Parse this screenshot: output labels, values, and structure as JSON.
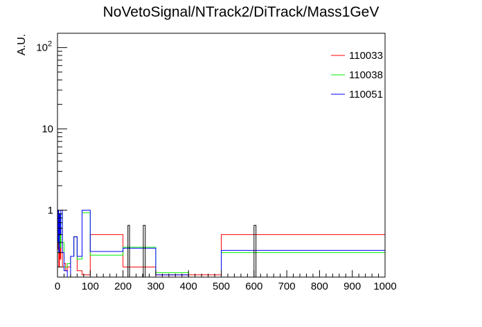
{
  "chart_data": {
    "type": "histogram-step",
    "title": "NoVetoSignal/NTrack2/DiTrack/Mass1GeV",
    "ylabel": "A.U.",
    "xlabel": "",
    "xlim": [
      0,
      1000
    ],
    "ylim": [
      0.15,
      150
    ],
    "yscale": "log",
    "grid": false,
    "legend_position": "top-right",
    "x_ticks": [
      "0",
      "100",
      "200",
      "300",
      "400",
      "500",
      "600",
      "700",
      "800",
      "900",
      "1000"
    ],
    "y_ticks": [
      {
        "value": 1,
        "label": "1"
      },
      {
        "value": 10,
        "label": "10"
      },
      {
        "value": 100,
        "label": "10",
        "exponent": "2"
      }
    ],
    "series": [
      {
        "name": "110033",
        "color": "#ff0000",
        "bins": [
          [
            0,
            2,
            0.33
          ],
          [
            2,
            4,
            1.0
          ],
          [
            4,
            6,
            0.2
          ],
          [
            6,
            8,
            0.5
          ],
          [
            8,
            10,
            0.25
          ],
          [
            10,
            15,
            0.6
          ],
          [
            15,
            20,
            0.2
          ],
          [
            20,
            25,
            0.22
          ],
          [
            25,
            30,
            0.18
          ],
          [
            30,
            40,
            0.2
          ],
          [
            40,
            50,
            0.27
          ],
          [
            50,
            60,
            0.47
          ],
          [
            60,
            75,
            0.18
          ],
          [
            75,
            100,
            0.16
          ],
          [
            100,
            200,
            0.5
          ],
          [
            200,
            300,
            0.2
          ],
          [
            300,
            400,
            0.16
          ],
          [
            400,
            500,
            0.16
          ],
          [
            500,
            1000,
            0.5
          ]
        ]
      },
      {
        "name": "110038",
        "color": "#00ee00",
        "bins": [
          [
            0,
            2,
            0.5
          ],
          [
            2,
            4,
            0.98
          ],
          [
            4,
            6,
            0.3
          ],
          [
            6,
            8,
            0.7
          ],
          [
            8,
            10,
            0.35
          ],
          [
            10,
            15,
            0.9
          ],
          [
            15,
            20,
            0.4
          ],
          [
            20,
            30,
            0.2
          ],
          [
            30,
            40,
            0.22
          ],
          [
            40,
            50,
            0.27
          ],
          [
            50,
            60,
            0.47
          ],
          [
            60,
            75,
            0.25
          ],
          [
            75,
            100,
            0.93
          ],
          [
            100,
            200,
            0.28
          ],
          [
            200,
            300,
            0.35
          ],
          [
            300,
            400,
            0.17
          ],
          [
            400,
            500,
            0.15
          ],
          [
            500,
            1000,
            0.3
          ]
        ]
      },
      {
        "name": "110051",
        "color": "#0000ff",
        "bins": [
          [
            0,
            2,
            0.4
          ],
          [
            2,
            4,
            1.0
          ],
          [
            4,
            6,
            0.3
          ],
          [
            6,
            8,
            0.9
          ],
          [
            8,
            10,
            0.5
          ],
          [
            10,
            15,
            1.0
          ],
          [
            15,
            20,
            0.3
          ],
          [
            20,
            30,
            0.18
          ],
          [
            30,
            40,
            0.15
          ],
          [
            40,
            50,
            0.27
          ],
          [
            50,
            60,
            0.47
          ],
          [
            60,
            75,
            0.27
          ],
          [
            75,
            100,
            1.0
          ],
          [
            100,
            200,
            0.31
          ],
          [
            200,
            300,
            0.34
          ],
          [
            300,
            400,
            0.16
          ],
          [
            400,
            500,
            0.15
          ],
          [
            500,
            1000,
            0.32
          ]
        ]
      },
      {
        "name": "",
        "color": "#000000",
        "bins": [
          [
            215,
            220,
            0.65
          ],
          [
            262,
            268,
            0.65
          ],
          [
            600,
            606,
            0.65
          ]
        ]
      }
    ]
  }
}
